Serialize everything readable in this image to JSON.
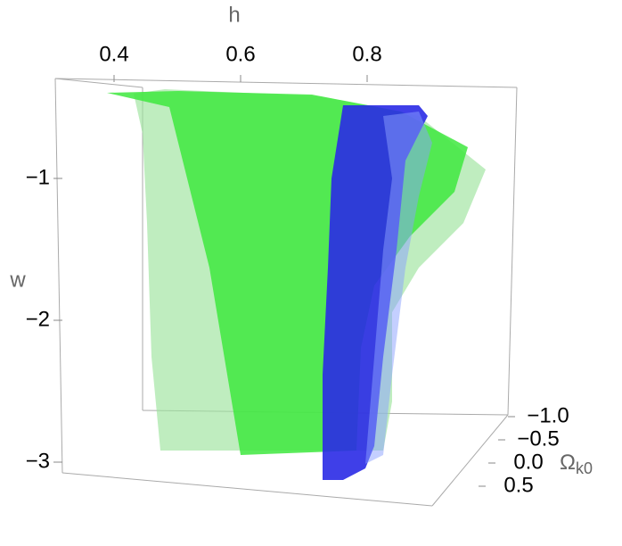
{
  "chart_data": {
    "type": "contour3d",
    "xlabel": "h",
    "ylabel": "w",
    "zlabel": {
      "symbol": "Ω",
      "subscript": "k0"
    },
    "xticks": [
      0.4,
      0.6,
      0.8
    ],
    "yticks": [
      {
        "value": -1,
        "label": "−1"
      },
      {
        "value": -2,
        "label": "−2"
      },
      {
        "value": -3,
        "label": "−3"
      }
    ],
    "zticks": [
      {
        "value": -1,
        "label": "−1.0"
      },
      {
        "value": -0.5,
        "label": "−0.5"
      },
      {
        "value": 0,
        "label": "0.0"
      },
      {
        "value": 0.5,
        "label": "0.5"
      }
    ]
  }
}
